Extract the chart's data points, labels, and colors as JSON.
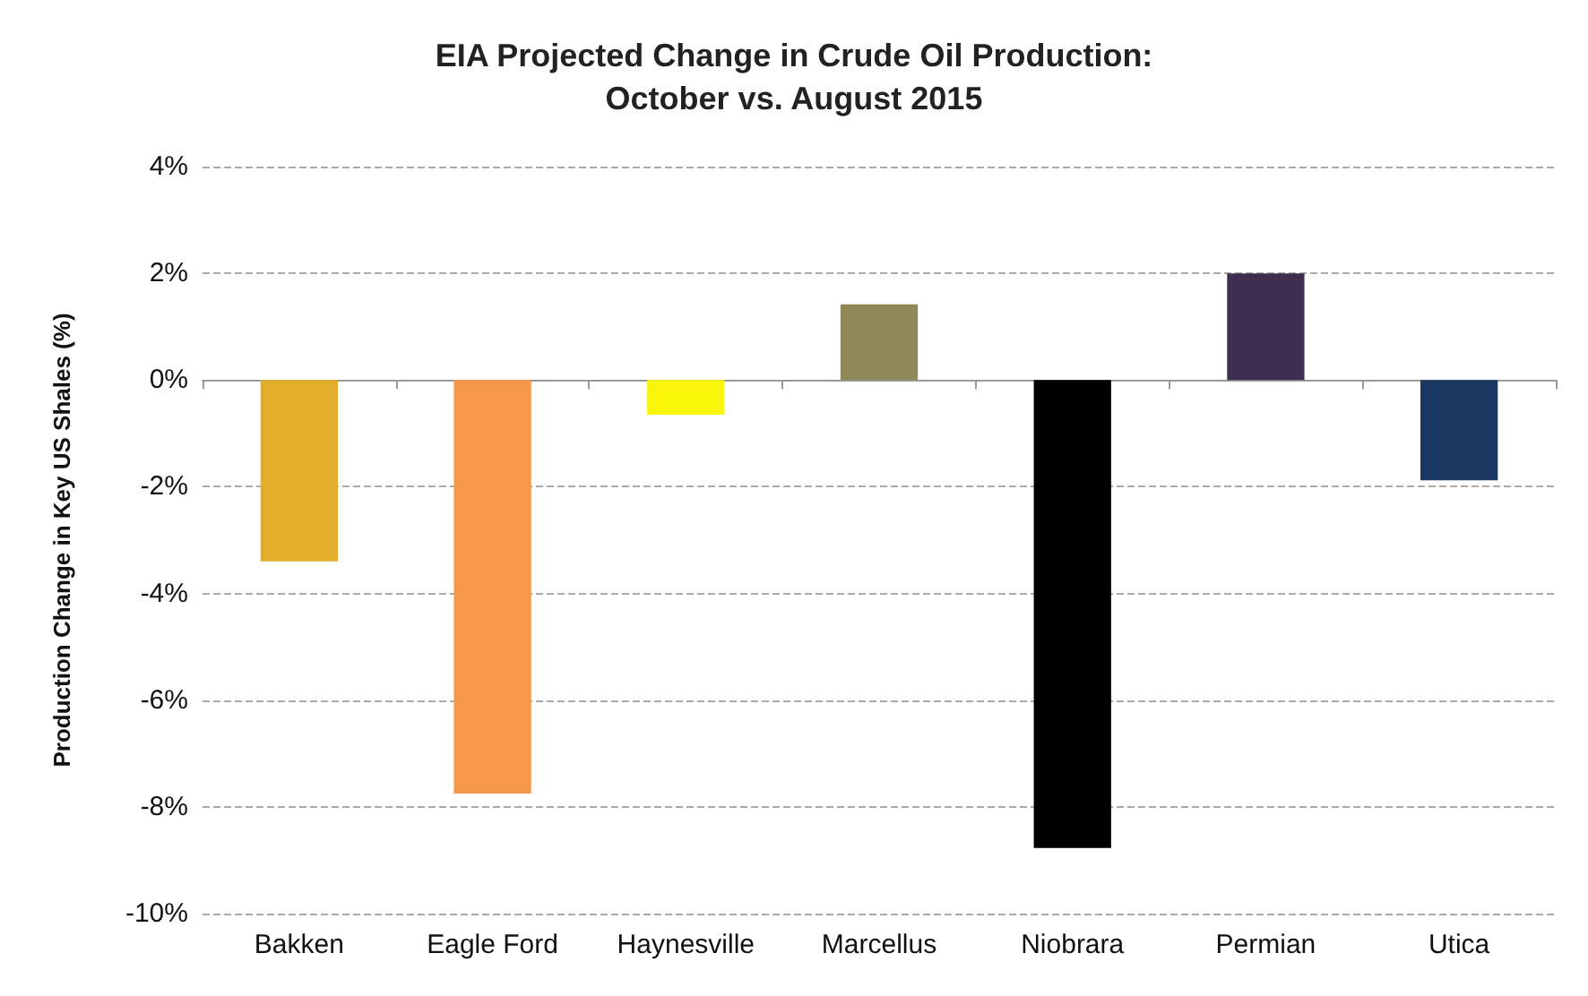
{
  "chart_data": {
    "type": "bar",
    "title": "EIA Projected Change in Crude Oil Production:\nOctober vs. August 2015",
    "ylabel": "Production Change in Key US Shales (%)",
    "categories": [
      "Bakken",
      "Eagle Ford",
      "Haynesville",
      "Marcellus",
      "Niobrara",
      "Permian",
      "Utica"
    ],
    "values": [
      -3.4,
      -7.75,
      -0.65,
      1.42,
      -8.77,
      2.0,
      -1.88
    ],
    "colors": [
      "#e2ad2a",
      "#f5984a",
      "#f8f50a",
      "#8f8755",
      "#000000",
      "#3e2e4f",
      "#1b3862"
    ],
    "ylim": [
      -10,
      4
    ],
    "yticks": [
      {
        "value": -10,
        "label": "-10%"
      },
      {
        "value": -8,
        "label": "-8%"
      },
      {
        "value": -6,
        "label": "-6%"
      },
      {
        "value": -4,
        "label": "-4%"
      },
      {
        "value": -2,
        "label": "-2%"
      },
      {
        "value": 0,
        "label": "0%"
      },
      {
        "value": 2,
        "label": "2%"
      },
      {
        "value": 4,
        "label": "4%"
      }
    ],
    "grid": "y"
  }
}
